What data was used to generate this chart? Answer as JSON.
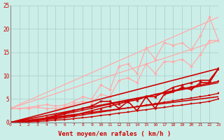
{
  "title": "",
  "xlabel": "Vent moyen/en rafales ( km/h )",
  "bg_color": "#cceee8",
  "grid_color": "#aacccc",
  "xlim": [
    0,
    23
  ],
  "ylim": [
    0,
    25
  ],
  "yticks": [
    0,
    5,
    10,
    15,
    20,
    25
  ],
  "xticks": [
    0,
    1,
    2,
    3,
    4,
    5,
    6,
    7,
    8,
    9,
    10,
    11,
    12,
    13,
    14,
    15,
    16,
    17,
    18,
    19,
    20,
    21,
    22,
    23
  ],
  "lines": [
    {
      "x": [
        0,
        23
      ],
      "y": [
        3.0,
        22.5
      ],
      "color": "#ffaaaa",
      "lw": 0.9,
      "marker": null,
      "ms": 0
    },
    {
      "x": [
        0,
        23
      ],
      "y": [
        3.0,
        17.5
      ],
      "color": "#ffaaaa",
      "lw": 0.9,
      "marker": null,
      "ms": 0
    },
    {
      "x": [
        0,
        1,
        2,
        3,
        4,
        5,
        6,
        7,
        8,
        9,
        10,
        11,
        12,
        13,
        14,
        15,
        16,
        17,
        18,
        19,
        20,
        21,
        22,
        23
      ],
      "y": [
        3.0,
        3.0,
        3.2,
        3.5,
        3.8,
        3.5,
        3.7,
        4.5,
        5.5,
        5.0,
        8.0,
        7.0,
        12.0,
        12.5,
        10.5,
        16.0,
        13.5,
        17.0,
        16.5,
        17.0,
        15.5,
        18.5,
        22.5,
        17.5
      ],
      "color": "#ffaaaa",
      "lw": 0.9,
      "marker": "D",
      "ms": 2.0
    },
    {
      "x": [
        0,
        1,
        2,
        3,
        4,
        5,
        6,
        7,
        8,
        9,
        10,
        11,
        12,
        13,
        14,
        15,
        16,
        17,
        18,
        19,
        20,
        21,
        22,
        23
      ],
      "y": [
        3.0,
        3.0,
        3.0,
        3.2,
        3.0,
        3.0,
        3.2,
        4.0,
        4.5,
        4.2,
        6.0,
        5.5,
        9.0,
        9.5,
        8.5,
        12.5,
        10.5,
        13.0,
        13.0,
        13.5,
        12.0,
        14.5,
        17.5,
        17.5
      ],
      "color": "#ffaaaa",
      "lw": 0.9,
      "marker": "D",
      "ms": 2.0
    },
    {
      "x": [
        0,
        23
      ],
      "y": [
        0.0,
        11.5
      ],
      "color": "#cc0000",
      "lw": 1.2,
      "marker": null,
      "ms": 0
    },
    {
      "x": [
        0,
        23
      ],
      "y": [
        0.0,
        8.5
      ],
      "color": "#cc0000",
      "lw": 1.2,
      "marker": null,
      "ms": 0
    },
    {
      "x": [
        0,
        23
      ],
      "y": [
        0.0,
        5.5
      ],
      "color": "#cc0000",
      "lw": 1.2,
      "marker": null,
      "ms": 0
    },
    {
      "x": [
        0,
        1,
        2,
        3,
        4,
        5,
        6,
        7,
        8,
        9,
        10,
        11,
        12,
        13,
        14,
        15,
        16,
        17,
        18,
        19,
        20,
        21,
        22,
        23
      ],
      "y": [
        0.0,
        0.0,
        0.2,
        0.5,
        0.8,
        1.0,
        1.3,
        1.5,
        2.0,
        2.5,
        3.0,
        3.5,
        4.0,
        4.5,
        4.8,
        5.5,
        5.5,
        6.5,
        7.5,
        8.0,
        8.5,
        9.0,
        9.0,
        11.5
      ],
      "color": "#cc0000",
      "lw": 1.2,
      "marker": "^",
      "ms": 2.5
    },
    {
      "x": [
        0,
        1,
        2,
        3,
        4,
        5,
        6,
        7,
        8,
        9,
        10,
        11,
        12,
        13,
        14,
        15,
        16,
        17,
        18,
        19,
        20,
        21,
        22,
        23
      ],
      "y": [
        0.0,
        0.0,
        0.2,
        0.5,
        1.0,
        1.5,
        2.0,
        2.5,
        3.0,
        3.5,
        4.5,
        4.5,
        3.0,
        4.5,
        2.5,
        5.5,
        3.0,
        6.0,
        6.5,
        7.5,
        7.0,
        8.5,
        8.5,
        11.5
      ],
      "color": "#cc0000",
      "lw": 1.2,
      "marker": "v",
      "ms": 2.5
    },
    {
      "x": [
        0,
        1,
        2,
        3,
        4,
        5,
        6,
        7,
        8,
        9,
        10,
        11,
        12,
        13,
        14,
        15,
        16,
        17,
        18,
        19,
        20,
        21,
        22,
        23
      ],
      "y": [
        0.0,
        0.0,
        0.1,
        0.2,
        0.3,
        0.5,
        0.6,
        0.8,
        1.0,
        1.2,
        1.5,
        1.7,
        2.0,
        2.2,
        2.5,
        2.7,
        3.0,
        3.2,
        3.5,
        3.7,
        4.0,
        4.2,
        4.5,
        5.0
      ],
      "color": "#cc0000",
      "lw": 1.0,
      "marker": "s",
      "ms": 1.8
    },
    {
      "x": [
        0,
        1,
        2,
        3,
        4,
        5,
        6,
        7,
        8,
        9,
        10,
        11,
        12,
        13,
        14,
        15,
        16,
        17,
        18,
        19,
        20,
        21,
        22,
        23
      ],
      "y": [
        0.0,
        0.0,
        0.2,
        0.4,
        0.6,
        0.8,
        1.0,
        1.3,
        1.6,
        1.9,
        2.2,
        2.5,
        2.8,
        3.1,
        3.4,
        3.7,
        4.0,
        4.3,
        4.6,
        4.9,
        5.2,
        5.5,
        5.8,
        6.2
      ],
      "color": "#cc0000",
      "lw": 1.0,
      "marker": "s",
      "ms": 1.8
    },
    {
      "x": [
        0,
        1,
        2,
        3,
        4,
        5,
        6,
        7,
        8,
        9,
        10,
        11,
        12,
        13,
        14,
        15,
        16,
        17,
        18,
        19,
        20,
        21,
        22,
        23
      ],
      "y": [
        0.0,
        0.0,
        0.3,
        0.6,
        1.0,
        1.4,
        1.8,
        2.2,
        2.6,
        3.0,
        3.5,
        3.9,
        4.3,
        4.7,
        5.1,
        5.5,
        6.0,
        6.4,
        6.8,
        7.2,
        7.6,
        8.0,
        8.4,
        8.8
      ],
      "color": "#cc0000",
      "lw": 1.0,
      "marker": "s",
      "ms": 1.8
    }
  ]
}
